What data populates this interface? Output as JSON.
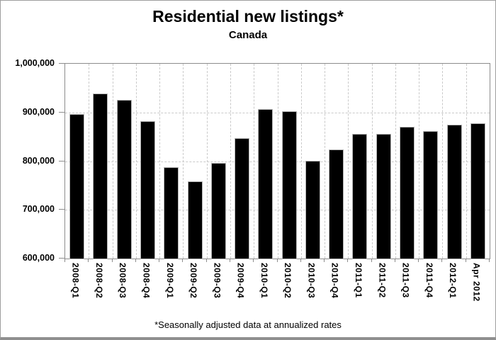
{
  "title": "Residential new listings*",
  "subtitle": "Canada",
  "footnote": "*Seasonally adjusted data at annualized rates",
  "colors": {
    "bar": "#000000",
    "grid": "#c9c9c9",
    "axis": "#8c8c8c",
    "frame_bottom": "#8f8f8f",
    "text": "#000000"
  },
  "chart_data": {
    "type": "bar",
    "title": "Residential new listings*",
    "subtitle": "Canada",
    "footnote": "*Seasonally adjusted data at annualized rates",
    "xlabel": "",
    "ylabel": "",
    "legend_position": "none",
    "grid": {
      "horizontal": "dashed",
      "vertical": "dashed"
    },
    "ylim": [
      600000,
      1000000
    ],
    "ytick_interval": 100000,
    "yticks": [
      {
        "value": 600000,
        "label": "600,000"
      },
      {
        "value": 700000,
        "label": "700,000"
      },
      {
        "value": 800000,
        "label": "800,000"
      },
      {
        "value": 900000,
        "label": "900,000"
      },
      {
        "value": 1000000,
        "label": "1,000,000"
      }
    ],
    "categories": [
      "2008-Q1",
      "2008-Q2",
      "2008-Q3",
      "2008-Q4",
      "2009-Q1",
      "2009-Q2",
      "2009-Q3",
      "2009-Q4",
      "2010-Q1",
      "2010-Q2",
      "2010-Q3",
      "2010-Q4",
      "2011-Q1",
      "2011-Q2",
      "2011-Q3",
      "2011-Q4",
      "2012-Q1",
      "Apr 2012"
    ],
    "values": [
      895000,
      938000,
      925000,
      881000,
      786000,
      757000,
      795000,
      846000,
      905000,
      901000,
      800000,
      822000,
      854000,
      855000,
      869000,
      861000,
      874000,
      877000
    ]
  }
}
